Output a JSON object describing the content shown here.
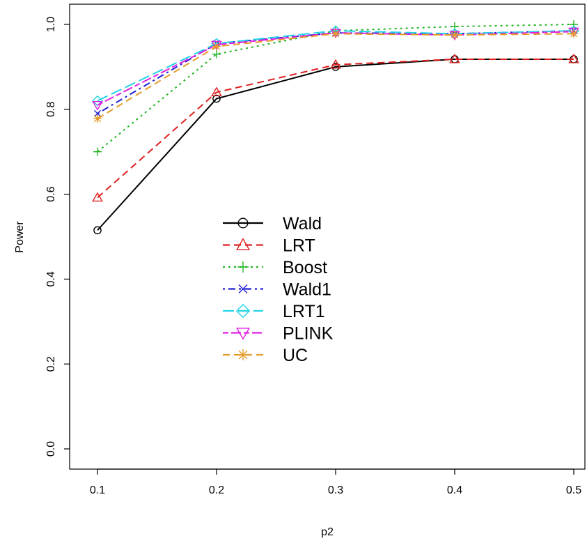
{
  "chart_data": {
    "type": "line",
    "xlabel": "p2",
    "ylabel": "Power",
    "x": [
      0.1,
      0.2,
      0.3,
      0.4,
      0.5
    ],
    "x_tick_labels": [
      "0.1",
      "0.2",
      "0.3",
      "0.4",
      "0.5"
    ],
    "y_ticks": [
      0.0,
      0.2,
      0.4,
      0.6,
      0.8,
      1.0
    ],
    "y_tick_labels": [
      "0.0",
      "0.2",
      "0.4",
      "0.6",
      "0.8",
      "1.0"
    ],
    "xlim": [
      0.1,
      0.5
    ],
    "ylim": [
      0.0,
      1.0
    ],
    "grid": false,
    "legend_position": "center-left",
    "series": [
      {
        "name": "Wald",
        "values": [
          0.515,
          0.825,
          0.9,
          0.918,
          0.918
        ],
        "color": "#000000",
        "dash": "solid",
        "marker": "circle"
      },
      {
        "name": "LRT",
        "values": [
          0.592,
          0.84,
          0.905,
          0.918,
          0.918
        ],
        "color": "#df2020",
        "dash": "dashed",
        "marker": "triangle-up"
      },
      {
        "name": "Boost",
        "values": [
          0.7,
          0.93,
          0.985,
          0.995,
          1.0
        ],
        "color": "#22b422",
        "dash": "dotted",
        "marker": "plus"
      },
      {
        "name": "Wald1",
        "values": [
          0.79,
          0.955,
          0.98,
          0.978,
          0.985
        ],
        "color": "#1f1fd6",
        "dash": "dotdash",
        "marker": "cross"
      },
      {
        "name": "LRT1",
        "values": [
          0.82,
          0.955,
          0.985,
          0.978,
          0.985
        ],
        "color": "#22d4e6",
        "dash": "longdash",
        "marker": "diamond"
      },
      {
        "name": "PLINK",
        "values": [
          0.81,
          0.952,
          0.98,
          0.975,
          0.983
        ],
        "color": "#e020e0",
        "dash": "twodash",
        "marker": "triangle-down"
      },
      {
        "name": "UC",
        "values": [
          0.778,
          0.948,
          0.978,
          0.975,
          0.978
        ],
        "color": "#e69b2a",
        "dash": "dashed",
        "marker": "asterisk"
      }
    ]
  }
}
